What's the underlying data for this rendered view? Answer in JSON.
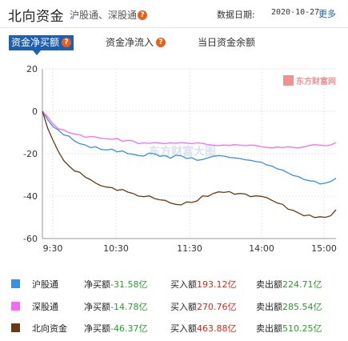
{
  "header": {
    "title": "北向资金",
    "subtitle": "沪股通、深股通",
    "date_label": "数据日期:",
    "date_value": "2020-10-27",
    "more_label": "更多"
  },
  "tabs": [
    {
      "label": "资金净买额",
      "active": true,
      "has_help": true
    },
    {
      "label": "资金净流入",
      "active": false,
      "has_help": true
    },
    {
      "label": "当日资金余额",
      "active": false,
      "has_help": false
    }
  ],
  "help_icon_text": "?",
  "watermark": {
    "logo_text": "东方财富网",
    "center_text": "东方财富大图"
  },
  "colors": {
    "accent": "#1f5fb0",
    "hgt": "#3a8ee6",
    "sgt": "#f26bf2",
    "north": "#6b3a12",
    "net_green": "#2a9d2a",
    "buy_red": "#d4281c"
  },
  "chart_data": {
    "type": "line",
    "yticks": [
      20,
      0,
      -20,
      -40,
      -60
    ],
    "ylim": [
      -60,
      20
    ],
    "x_ticks": [
      "9:30",
      "10:30",
      "11:30",
      "14:00",
      "15:00"
    ],
    "grid": true,
    "series": [
      {
        "name": "沪股通",
        "color": "#3a8ee6",
        "values": [
          0,
          -4,
          -7,
          -9,
          -11,
          -12,
          -14,
          -15,
          -16,
          -17,
          -17,
          -18,
          -18,
          -18,
          -19,
          -19,
          -20,
          -20,
          -21,
          -21,
          -20,
          -20,
          -21,
          -21,
          -22,
          -21,
          -21,
          -22,
          -22,
          -23,
          -23,
          -22,
          -21,
          -21,
          -21,
          -22,
          -22,
          -22,
          -23,
          -23,
          -24,
          -24,
          -25,
          -26,
          -27,
          -28,
          -29,
          -30,
          -31,
          -32,
          -33,
          -33,
          -34,
          -34,
          -33,
          -31.58
        ]
      },
      {
        "name": "深股通",
        "color": "#f26bf2",
        "values": [
          0,
          -3,
          -6,
          -8,
          -9,
          -10,
          -11,
          -11,
          -12,
          -12,
          -12,
          -13,
          -13,
          -13,
          -13,
          -14,
          -14,
          -14,
          -15,
          -15,
          -15,
          -15,
          -15,
          -15,
          -15,
          -15,
          -15,
          -15,
          -15,
          -15,
          -15,
          -16,
          -16,
          -16,
          -16,
          -16,
          -16,
          -16,
          -16,
          -16,
          -16,
          -17,
          -17,
          -17,
          -17,
          -17,
          -17,
          -17,
          -17,
          -17,
          -16,
          -16,
          -16,
          -16,
          -16,
          -14.78
        ]
      },
      {
        "name": "北向资金",
        "color": "#6b3a12",
        "values": [
          0,
          -8,
          -14,
          -19,
          -23,
          -26,
          -28,
          -29,
          -31,
          -32,
          -34,
          -35,
          -36,
          -36,
          -37,
          -37,
          -38,
          -39,
          -40,
          -40,
          -40,
          -41,
          -42,
          -42,
          -43,
          -44,
          -44,
          -43,
          -43,
          -42,
          -40,
          -40,
          -39,
          -38,
          -38,
          -38,
          -39,
          -39,
          -39,
          -40,
          -40,
          -40,
          -41,
          -42,
          -43,
          -44,
          -46,
          -47,
          -48,
          -49,
          -49,
          -50,
          -50,
          -50,
          -49,
          -46.37
        ]
      }
    ]
  },
  "legend": [
    {
      "name": "沪股通",
      "color": "#3a8ee6",
      "net_label": "净买额",
      "net_value": "-31.58",
      "buy_label": "买入额",
      "buy_value": "193.12",
      "sell_label": "卖出额",
      "sell_value": "224.71",
      "unit": "亿"
    },
    {
      "name": "深股通",
      "color": "#f26bf2",
      "net_label": "净买额",
      "net_value": "-14.78",
      "buy_label": "买入额",
      "buy_value": "270.76",
      "sell_label": "卖出额",
      "sell_value": "285.54",
      "unit": "亿"
    },
    {
      "name": "北向资金",
      "color": "#6b3a12",
      "net_label": "净买额",
      "net_value": "-46.37",
      "buy_label": "买入额",
      "buy_value": "463.88",
      "sell_label": "卖出额",
      "sell_value": "510.25",
      "unit": "亿"
    }
  ]
}
